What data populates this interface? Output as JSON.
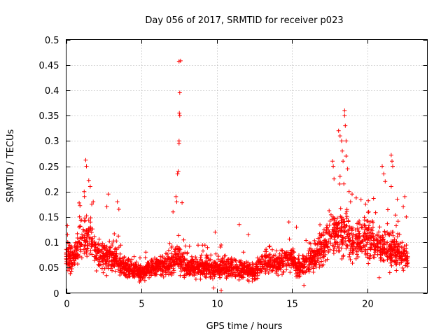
{
  "chart_data": {
    "type": "scatter",
    "title": "Day 056 of 2017, SRMTID for receiver p023",
    "xlabel": "GPS time / hours",
    "ylabel": "SRMTID / TECUs",
    "xlim": [
      0,
      24
    ],
    "ylim": [
      0,
      0.5
    ],
    "grid": true,
    "marker": "+",
    "color": "#ff0000",
    "x_ticks": [
      0,
      5,
      10,
      15,
      20
    ],
    "y_ticks": [
      0,
      0.05,
      0.1,
      0.15,
      0.2,
      0.25,
      0.3,
      0.35,
      0.4,
      0.45,
      0.5
    ],
    "x_tick_labels": [
      "0",
      "5",
      "10",
      "15",
      "20"
    ],
    "y_tick_labels": [
      "0",
      "0.05",
      "0.1",
      "0.15",
      "0.2",
      "0.25",
      "0.3",
      "0.35",
      "0.4",
      "0.45",
      "0.5"
    ],
    "baseline_profile": [
      [
        0.0,
        0.07
      ],
      [
        0.5,
        0.07
      ],
      [
        1.0,
        0.11
      ],
      [
        1.5,
        0.11
      ],
      [
        2.0,
        0.08
      ],
      [
        2.5,
        0.07
      ],
      [
        3.0,
        0.07
      ],
      [
        3.5,
        0.06
      ],
      [
        4.0,
        0.05
      ],
      [
        4.5,
        0.045
      ],
      [
        5.0,
        0.035
      ],
      [
        5.5,
        0.05
      ],
      [
        6.0,
        0.05
      ],
      [
        6.5,
        0.055
      ],
      [
        7.0,
        0.06
      ],
      [
        7.5,
        0.07
      ],
      [
        8.0,
        0.05
      ],
      [
        9.0,
        0.05
      ],
      [
        10.0,
        0.05
      ],
      [
        11.0,
        0.05
      ],
      [
        12.0,
        0.045
      ],
      [
        12.5,
        0.04
      ],
      [
        13.0,
        0.06
      ],
      [
        14.0,
        0.06
      ],
      [
        15.0,
        0.065
      ],
      [
        15.5,
        0.05
      ],
      [
        16.0,
        0.06
      ],
      [
        16.5,
        0.07
      ],
      [
        17.0,
        0.09
      ],
      [
        17.5,
        0.11
      ],
      [
        18.0,
        0.12
      ],
      [
        18.5,
        0.12
      ],
      [
        19.0,
        0.1
      ],
      [
        19.5,
        0.1
      ],
      [
        20.0,
        0.11
      ],
      [
        20.5,
        0.1
      ],
      [
        21.0,
        0.09
      ],
      [
        21.5,
        0.09
      ],
      [
        22.0,
        0.08
      ],
      [
        22.7,
        0.07
      ]
    ],
    "notable_points": [
      {
        "x": 0.1,
        "y": 0.1
      },
      {
        "x": 1.3,
        "y": 0.262
      },
      {
        "x": 1.35,
        "y": 0.25
      },
      {
        "x": 1.5,
        "y": 0.222
      },
      {
        "x": 1.6,
        "y": 0.21
      },
      {
        "x": 1.2,
        "y": 0.2
      },
      {
        "x": 1.7,
        "y": 0.175
      },
      {
        "x": 1.8,
        "y": 0.18
      },
      {
        "x": 2.8,
        "y": 0.195
      },
      {
        "x": 2.7,
        "y": 0.17
      },
      {
        "x": 3.4,
        "y": 0.18
      },
      {
        "x": 3.5,
        "y": 0.165
      },
      {
        "x": 7.1,
        "y": 0.16
      },
      {
        "x": 7.3,
        "y": 0.19
      },
      {
        "x": 7.35,
        "y": 0.18
      },
      {
        "x": 7.4,
        "y": 0.235
      },
      {
        "x": 7.45,
        "y": 0.24
      },
      {
        "x": 7.5,
        "y": 0.3
      },
      {
        "x": 7.5,
        "y": 0.295
      },
      {
        "x": 7.52,
        "y": 0.355
      },
      {
        "x": 7.55,
        "y": 0.35
      },
      {
        "x": 7.55,
        "y": 0.395
      },
      {
        "x": 7.5,
        "y": 0.457
      },
      {
        "x": 7.6,
        "y": 0.458
      },
      {
        "x": 7.7,
        "y": 0.178
      },
      {
        "x": 9.9,
        "y": 0.12
      },
      {
        "x": 11.5,
        "y": 0.135
      },
      {
        "x": 12.1,
        "y": 0.115
      },
      {
        "x": 14.8,
        "y": 0.14
      },
      {
        "x": 15.3,
        "y": 0.13
      },
      {
        "x": 15.8,
        "y": 0.015
      },
      {
        "x": 17.7,
        "y": 0.26
      },
      {
        "x": 17.75,
        "y": 0.25
      },
      {
        "x": 17.8,
        "y": 0.225
      },
      {
        "x": 18.1,
        "y": 0.32
      },
      {
        "x": 18.2,
        "y": 0.31
      },
      {
        "x": 18.3,
        "y": 0.3
      },
      {
        "x": 18.35,
        "y": 0.28
      },
      {
        "x": 18.5,
        "y": 0.36
      },
      {
        "x": 18.5,
        "y": 0.35
      },
      {
        "x": 18.55,
        "y": 0.33
      },
      {
        "x": 18.6,
        "y": 0.3
      },
      {
        "x": 18.6,
        "y": 0.27
      },
      {
        "x": 18.4,
        "y": 0.26
      },
      {
        "x": 18.7,
        "y": 0.245
      },
      {
        "x": 18.2,
        "y": 0.23
      },
      {
        "x": 18.8,
        "y": 0.2
      },
      {
        "x": 18.9,
        "y": 0.18
      },
      {
        "x": 19.0,
        "y": 0.195
      },
      {
        "x": 18.45,
        "y": 0.215
      },
      {
        "x": 19.9,
        "y": 0.175
      },
      {
        "x": 20.1,
        "y": 0.16
      },
      {
        "x": 20.2,
        "y": 0.14
      },
      {
        "x": 21.0,
        "y": 0.25
      },
      {
        "x": 21.1,
        "y": 0.235
      },
      {
        "x": 21.2,
        "y": 0.22
      },
      {
        "x": 21.6,
        "y": 0.272
      },
      {
        "x": 21.65,
        "y": 0.26
      },
      {
        "x": 21.7,
        "y": 0.25
      },
      {
        "x": 21.6,
        "y": 0.21
      },
      {
        "x": 22.0,
        "y": 0.185
      },
      {
        "x": 22.5,
        "y": 0.19
      },
      {
        "x": 22.4,
        "y": 0.17
      },
      {
        "x": 22.6,
        "y": 0.15
      },
      {
        "x": 20.8,
        "y": 0.03
      },
      {
        "x": 21.5,
        "y": 0.04
      },
      {
        "x": 10.3,
        "y": 0.005
      },
      {
        "x": 9.8,
        "y": 0.01
      }
    ],
    "generated_points": 2600
  }
}
